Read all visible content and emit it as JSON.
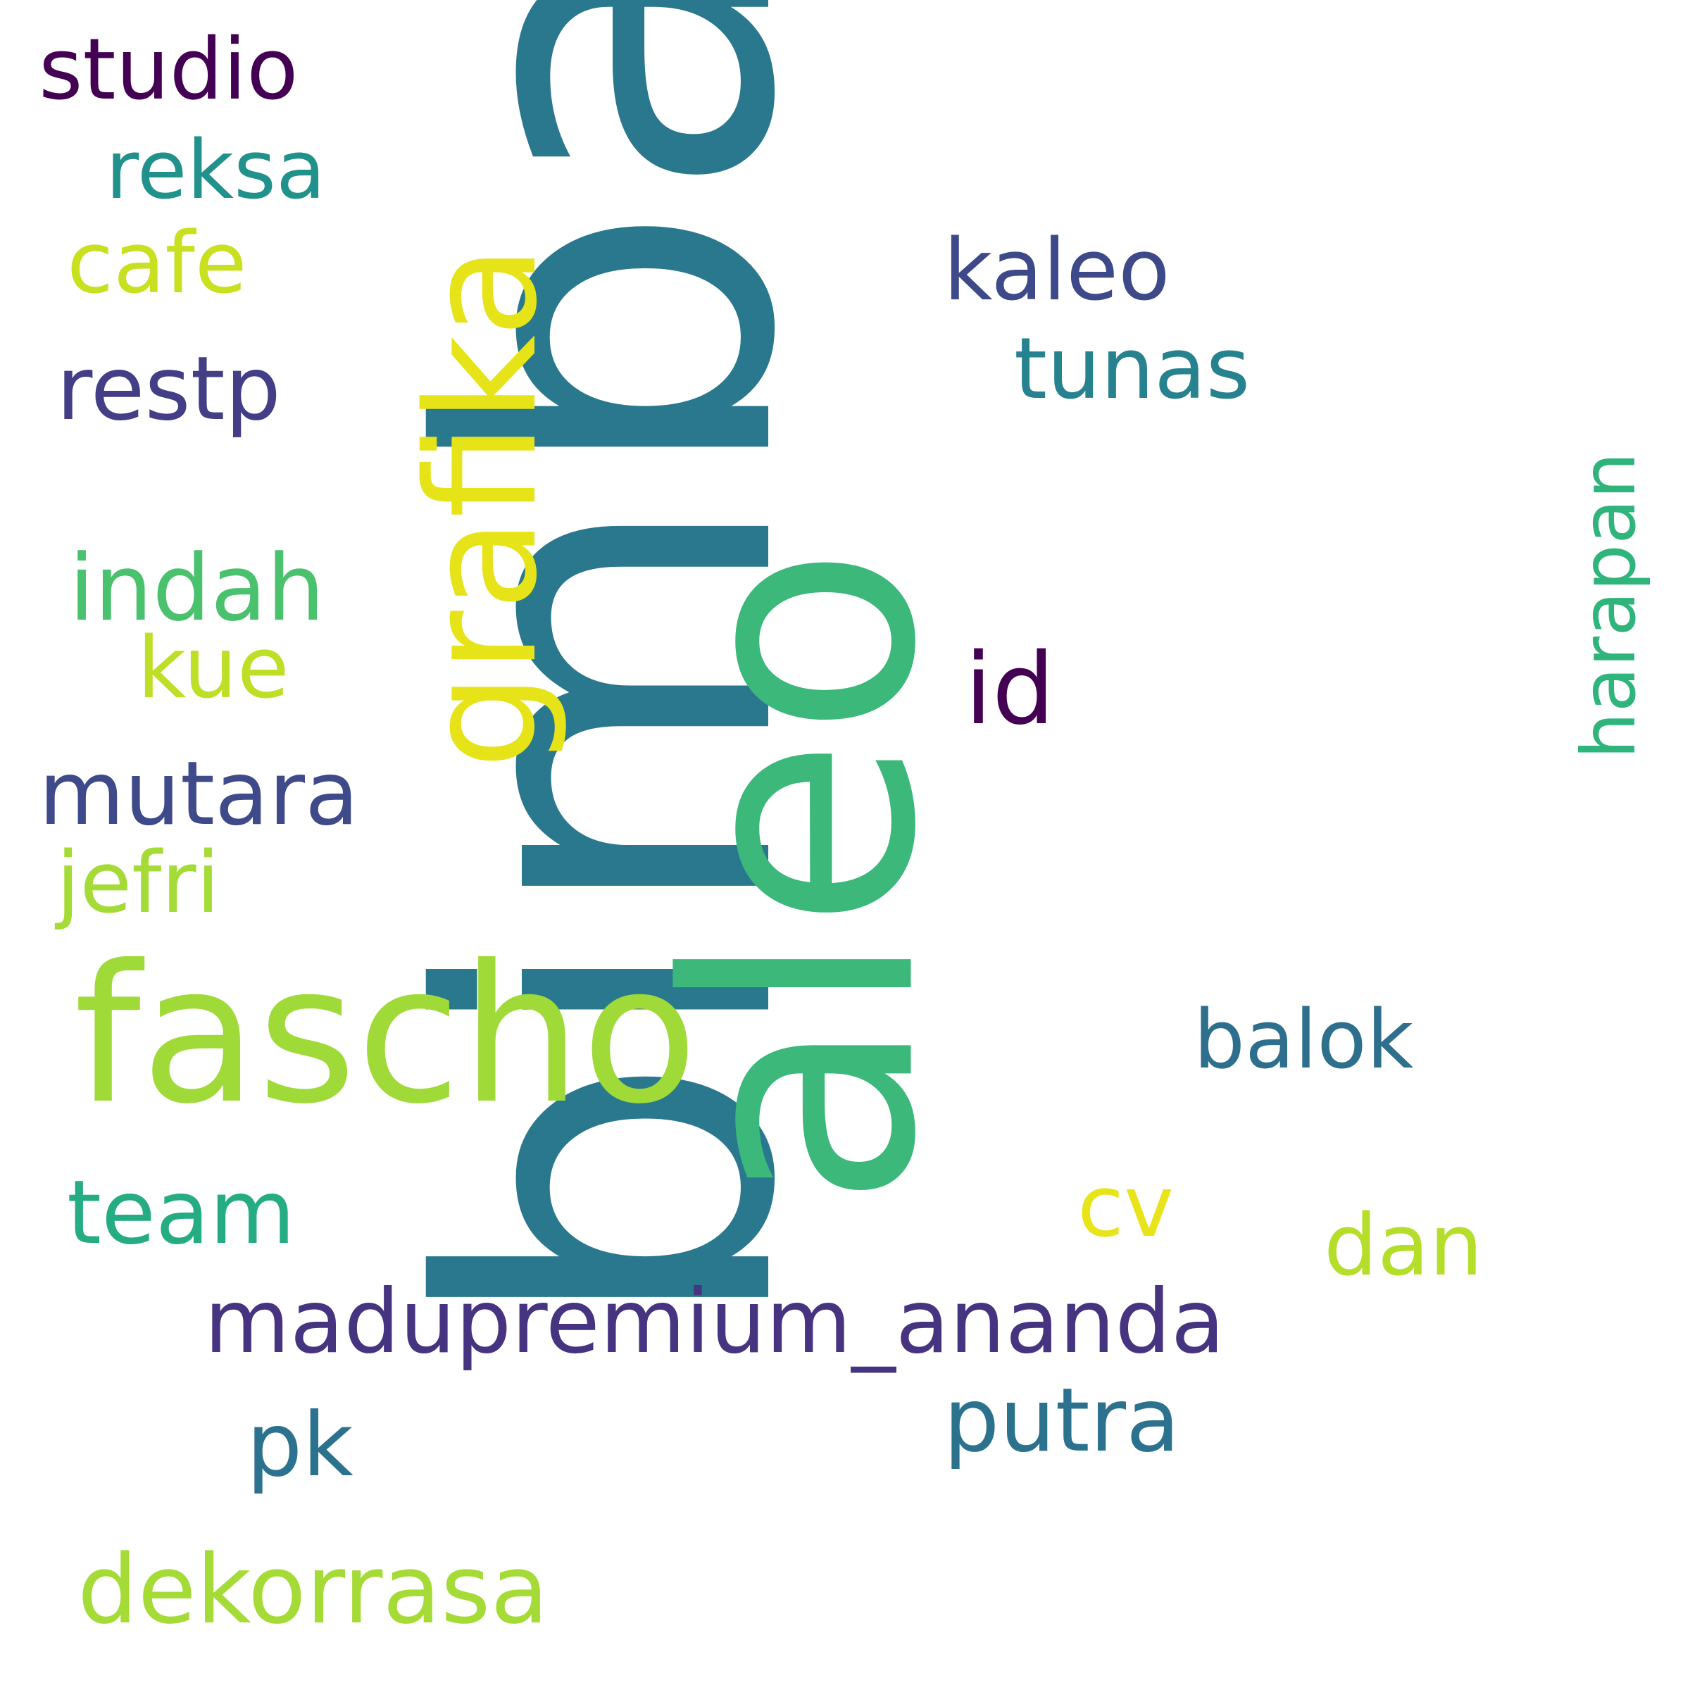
{
  "cloud": {
    "background": "#ffffff",
    "words": {
      "bimba": {
        "text": "bimba",
        "color": "#2a788e"
      },
      "aleo": {
        "text": "aleo",
        "color": "#3bb87a"
      },
      "grafika": {
        "text": "grafika",
        "color": "#e6e419"
      },
      "fascho": {
        "text": "fascho",
        "color": "#a0da39"
      },
      "harapan": {
        "text": "harapan",
        "color": "#2fb47c"
      },
      "studio": {
        "text": "studio",
        "color": "#440154"
      },
      "reksa": {
        "text": "reksa",
        "color": "#21918c"
      },
      "cafe": {
        "text": "cafe",
        "color": "#c8e020"
      },
      "restp": {
        "text": "restp",
        "color": "#433e85"
      },
      "indah": {
        "text": "indah",
        "color": "#4ac16d"
      },
      "kue": {
        "text": "kue",
        "color": "#bddf26"
      },
      "mutara": {
        "text": "mutara",
        "color": "#3e4a89"
      },
      "jefri": {
        "text": "jefri",
        "color": "#a5db36"
      },
      "team": {
        "text": "team",
        "color": "#25ac82"
      },
      "pk": {
        "text": "pk",
        "color": "#2c728e"
      },
      "dekorrasa": {
        "text": "dekorrasa",
        "color": "#a5db36"
      },
      "kaleo": {
        "text": "kaleo",
        "color": "#3e4989"
      },
      "tunas": {
        "text": "tunas",
        "color": "#26828e"
      },
      "id": {
        "text": "id",
        "color": "#440154"
      },
      "balok": {
        "text": "balok",
        "color": "#2e6f8e"
      },
      "cv": {
        "text": "cv",
        "color": "#e8e419"
      },
      "dan": {
        "text": "dan",
        "color": "#b5de2b"
      },
      "madupremium_ananda": {
        "text": "madupremium_ananda",
        "color": "#463480"
      },
      "putra": {
        "text": "putra",
        "color": "#2c728e"
      }
    }
  }
}
